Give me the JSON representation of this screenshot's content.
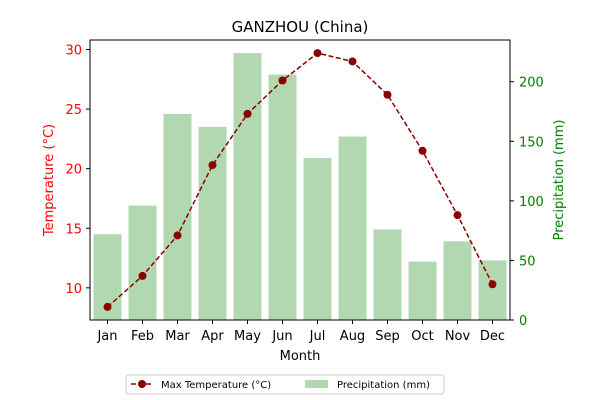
{
  "chart_data": {
    "type": "bar+line",
    "title": "GANZHOU (China)",
    "xlabel": "Month",
    "categories": [
      "Jan",
      "Feb",
      "Mar",
      "Apr",
      "May",
      "Jun",
      "Jul",
      "Aug",
      "Sep",
      "Oct",
      "Nov",
      "Dec"
    ],
    "left_axis": {
      "label": "Temperature (°C)",
      "color": "#ff0000",
      "ylim": [
        7.3,
        30.8
      ],
      "ticks": [
        10,
        15,
        20,
        25,
        30
      ]
    },
    "right_axis": {
      "label": "Precipitation (mm)",
      "color": "#008000",
      "ylim": [
        0,
        235
      ],
      "ticks": [
        0,
        50,
        100,
        150,
        200
      ]
    },
    "series": [
      {
        "name": "Max Temperature (°C)",
        "kind": "line",
        "axis": "left",
        "color": "#8b0000",
        "values": [
          8.4,
          11.0,
          14.4,
          20.3,
          24.6,
          27.4,
          29.7,
          29.0,
          26.2,
          21.5,
          16.1,
          10.3
        ]
      },
      {
        "name": "Precipitation (mm)",
        "kind": "bar",
        "axis": "right",
        "color": "#b1d8b1",
        "values": [
          72,
          96,
          173,
          162,
          224,
          206,
          136,
          154,
          76,
          49,
          66,
          50
        ]
      }
    ],
    "legend_position": "bottom-center"
  }
}
